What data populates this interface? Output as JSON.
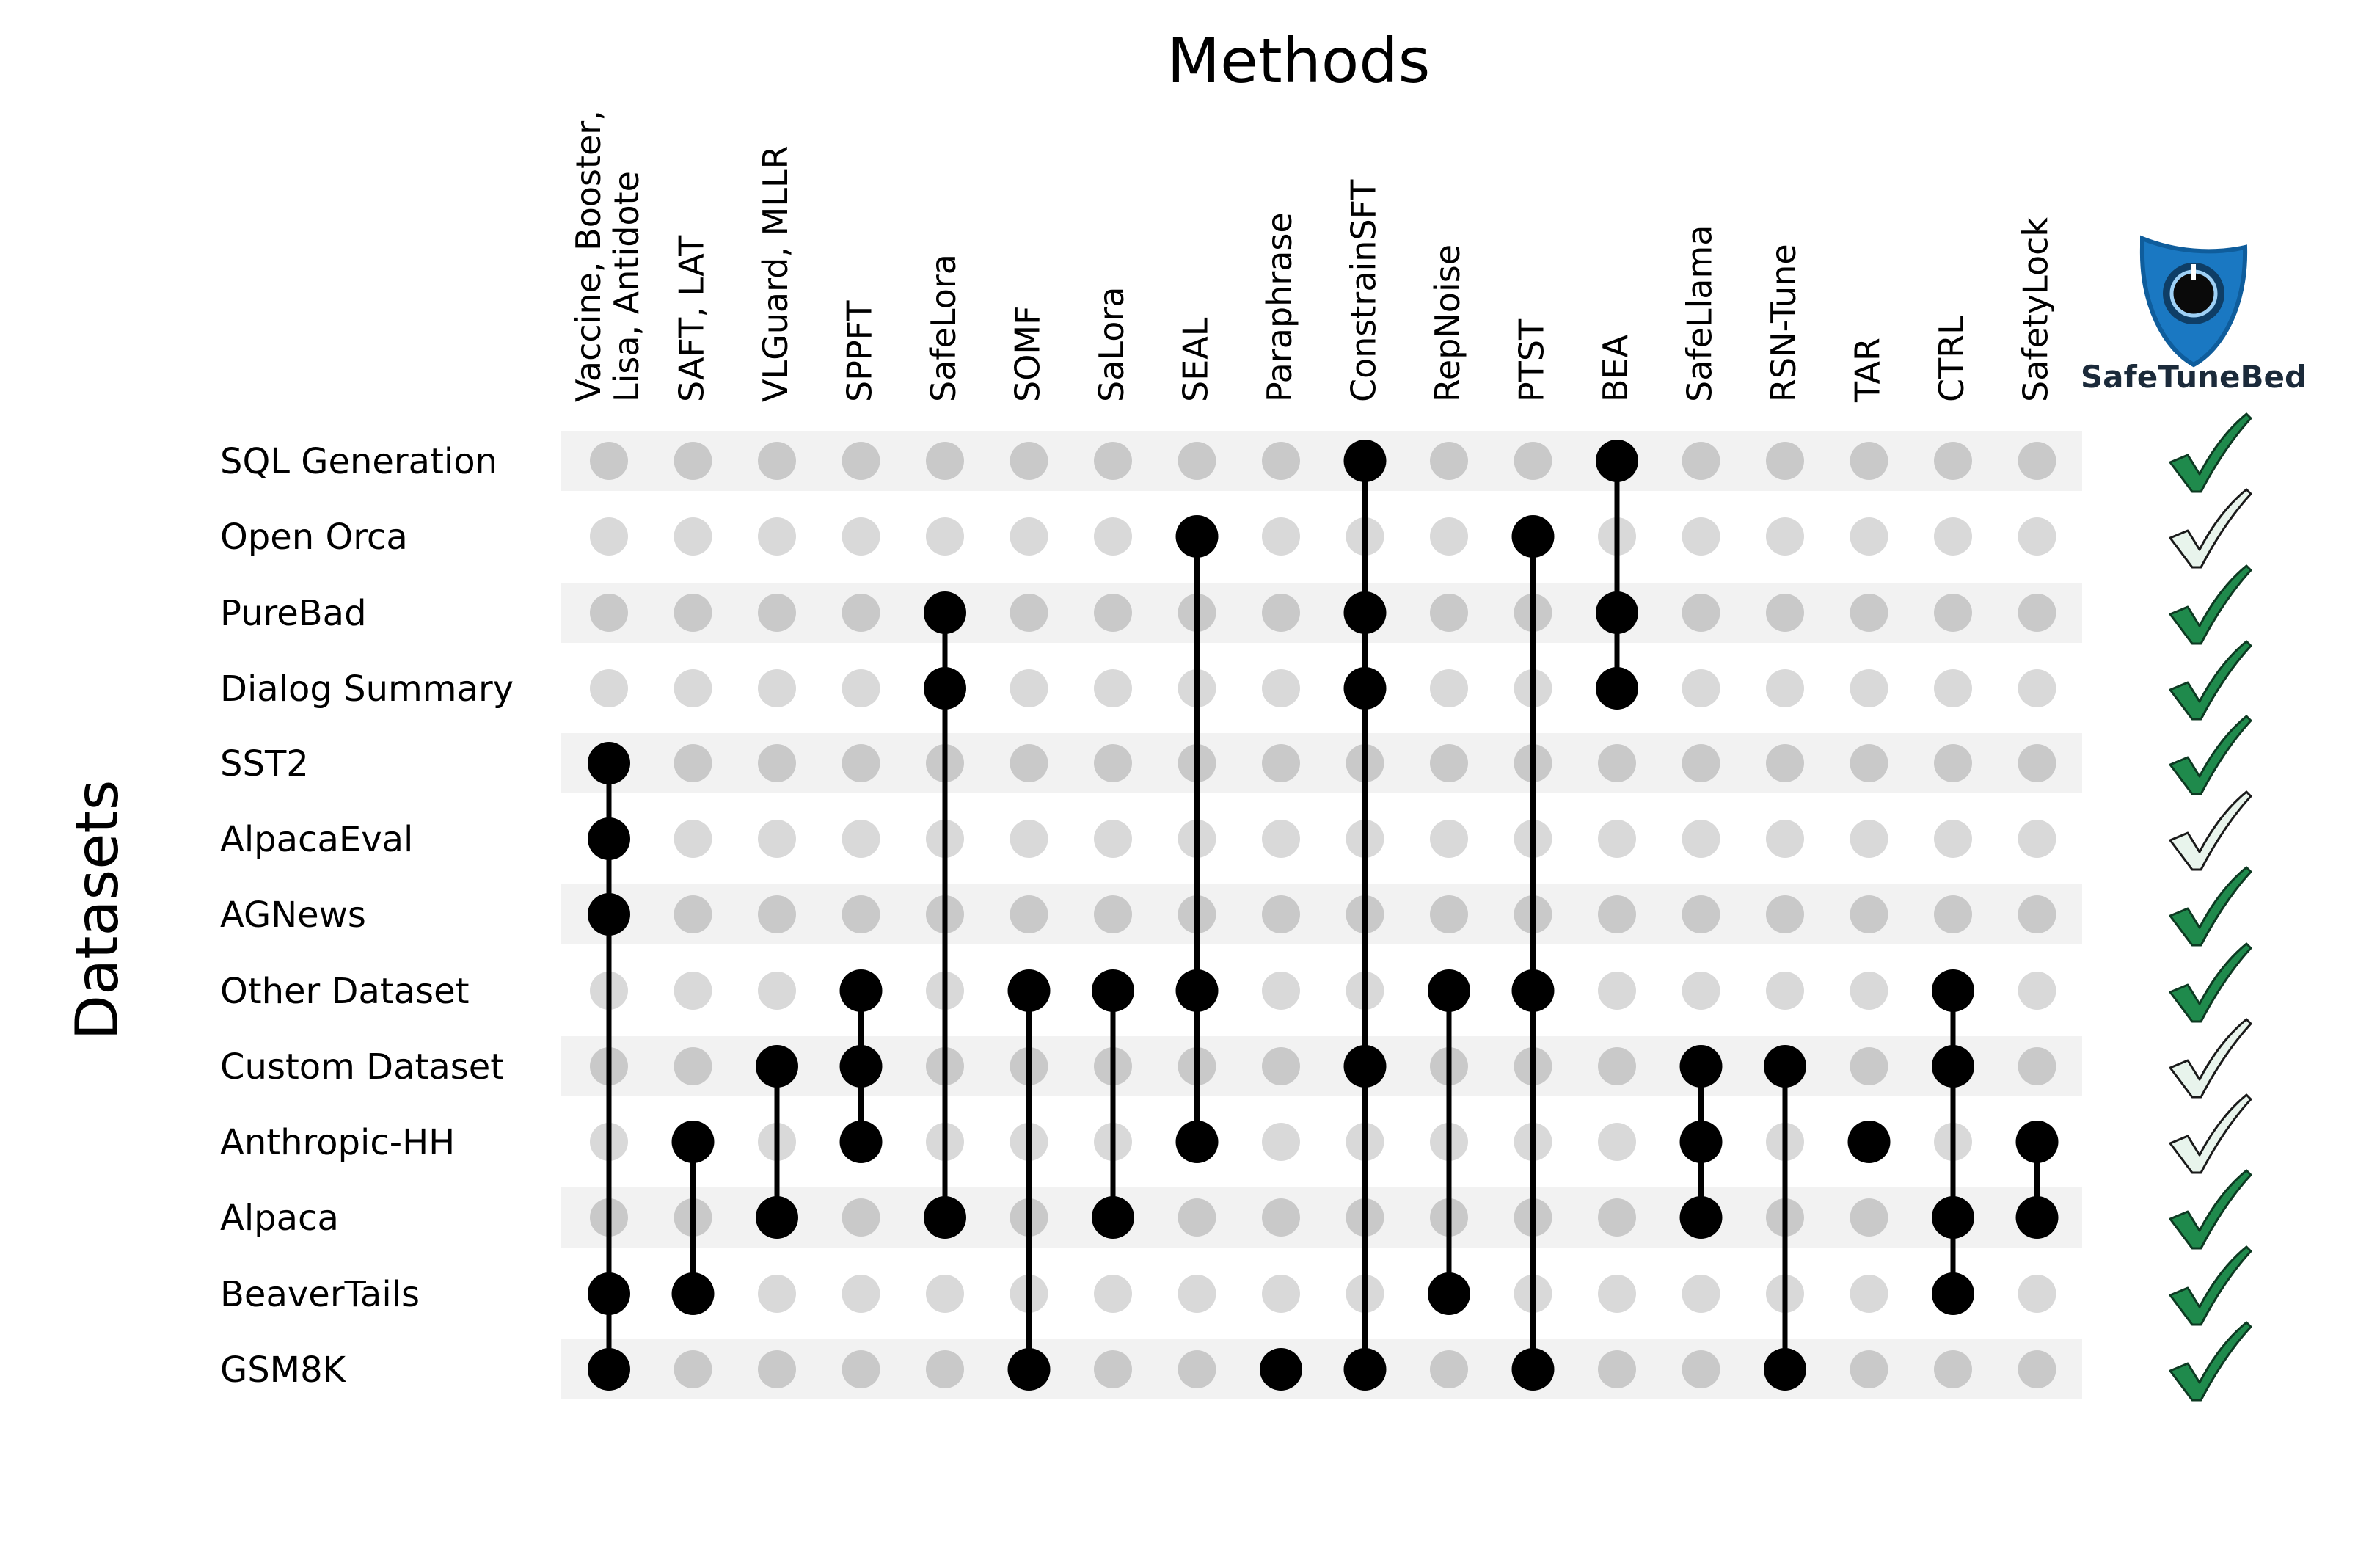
{
  "title": "Methods",
  "y_title": "Datasets",
  "methods": [
    [
      "Vaccine, Booster,",
      "Lisa, Antidote"
    ],
    [
      "SAFT, LAT"
    ],
    [
      "VLGuard, MLLR"
    ],
    [
      "SPPFT"
    ],
    [
      "SafeLora"
    ],
    [
      "SOMF"
    ],
    [
      "SaLora"
    ],
    [
      "SEAL"
    ],
    [
      "Paraphrase"
    ],
    [
      "ConstrainSFT"
    ],
    [
      "RepNoise"
    ],
    [
      "PTST"
    ],
    [
      "BEA"
    ],
    [
      "SafeLlama"
    ],
    [
      "RSN-Tune"
    ],
    [
      "TAR"
    ],
    [
      "CTRL"
    ],
    [
      "SafetyLock"
    ]
  ],
  "datasets": [
    "SQL Generation",
    "Open Orca",
    "PureBad",
    "Dialog Summary",
    "SST2",
    "AlpacaEval",
    "AGNews",
    "Other Dataset",
    "Custom Dataset",
    "Anthropic-HH",
    "Alpaca",
    "BeaverTails",
    "GSM8K"
  ],
  "matrix": [
    [
      0,
      0,
      0,
      0,
      0,
      0,
      0,
      0,
      0,
      1,
      0,
      0,
      1,
      0,
      0,
      0,
      0,
      0
    ],
    [
      0,
      0,
      0,
      0,
      0,
      0,
      0,
      1,
      0,
      0,
      0,
      1,
      0,
      0,
      0,
      0,
      0,
      0
    ],
    [
      0,
      0,
      0,
      0,
      1,
      0,
      0,
      0,
      0,
      1,
      0,
      0,
      1,
      0,
      0,
      0,
      0,
      0
    ],
    [
      0,
      0,
      0,
      0,
      1,
      0,
      0,
      0,
      0,
      1,
      0,
      0,
      1,
      0,
      0,
      0,
      0,
      0
    ],
    [
      1,
      0,
      0,
      0,
      0,
      0,
      0,
      0,
      0,
      0,
      0,
      0,
      0,
      0,
      0,
      0,
      0,
      0
    ],
    [
      1,
      0,
      0,
      0,
      0,
      0,
      0,
      0,
      0,
      0,
      0,
      0,
      0,
      0,
      0,
      0,
      0,
      0
    ],
    [
      1,
      0,
      0,
      0,
      0,
      0,
      0,
      0,
      0,
      0,
      0,
      0,
      0,
      0,
      0,
      0,
      0,
      0
    ],
    [
      0,
      0,
      0,
      1,
      0,
      1,
      1,
      1,
      0,
      0,
      1,
      1,
      0,
      0,
      0,
      0,
      1,
      0
    ],
    [
      0,
      0,
      1,
      1,
      0,
      0,
      0,
      0,
      0,
      1,
      0,
      0,
      0,
      1,
      1,
      0,
      1,
      0
    ],
    [
      0,
      1,
      0,
      1,
      0,
      0,
      0,
      1,
      0,
      0,
      0,
      0,
      0,
      1,
      0,
      1,
      0,
      1
    ],
    [
      0,
      0,
      1,
      0,
      1,
      0,
      1,
      0,
      0,
      0,
      0,
      0,
      0,
      1,
      0,
      0,
      1,
      1
    ],
    [
      1,
      1,
      0,
      0,
      0,
      0,
      0,
      0,
      0,
      0,
      1,
      0,
      0,
      0,
      0,
      0,
      1,
      0
    ],
    [
      1,
      0,
      0,
      0,
      0,
      1,
      0,
      0,
      1,
      1,
      0,
      1,
      0,
      0,
      1,
      0,
      0,
      0
    ]
  ],
  "supported": [
    true,
    false,
    true,
    true,
    true,
    false,
    true,
    true,
    false,
    false,
    true,
    true,
    true
  ],
  "logo": {
    "name": "SafeTuneBed",
    "icon": "shield-dial-icon"
  },
  "colors": {
    "active_dot": "#000000",
    "inactive_dot_dark": "#c9c9c9",
    "inactive_dot_light": "#d9d9d9",
    "row_band": "#f2f2f2",
    "check_supported": "#1f8a4c",
    "check_unsupported": "#e8f4ec",
    "shield": "#1a78c2"
  }
}
